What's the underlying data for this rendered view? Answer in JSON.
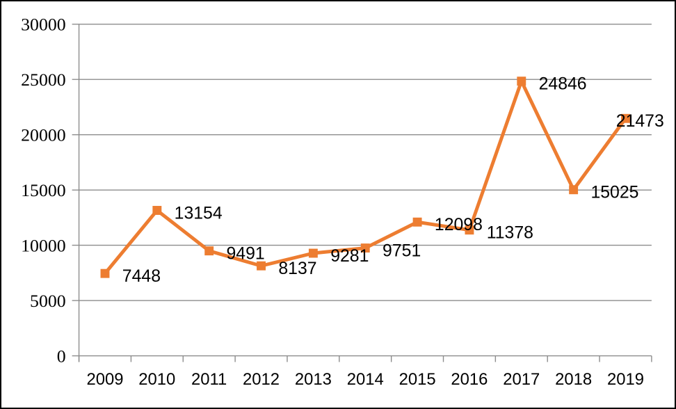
{
  "chart_data": {
    "type": "line",
    "title": "",
    "xlabel": "",
    "ylabel": "",
    "categories": [
      "2009",
      "2010",
      "2011",
      "2012",
      "2013",
      "2014",
      "2015",
      "2016",
      "2017",
      "2018",
      "2019"
    ],
    "series": [
      {
        "name": "",
        "values": [
          7448,
          13154,
          9491,
          8137,
          9281,
          9751,
          12098,
          11378,
          24846,
          15025,
          21473
        ],
        "color": "#ED7D31",
        "marker": "square"
      }
    ],
    "data_labels": [
      "7448",
      "13154",
      "9491",
      "8137",
      "9281",
      "9751",
      "12098",
      "11378",
      "24846",
      "15025",
      "21473"
    ],
    "ylim": [
      0,
      30000
    ],
    "ytick_interval": 5000,
    "yticks": [
      "0",
      "5000",
      "10000",
      "15000",
      "20000",
      "25000",
      "30000"
    ],
    "grid": true,
    "legend": "none",
    "colors": {
      "line": "#ED7D31",
      "marker_fill": "#ED7D31",
      "gridline": "#8C8C8C",
      "axis": "#8C8C8C",
      "label_text": "#000000",
      "background": "#FFFFFF",
      "frame_border": "#000000"
    }
  }
}
